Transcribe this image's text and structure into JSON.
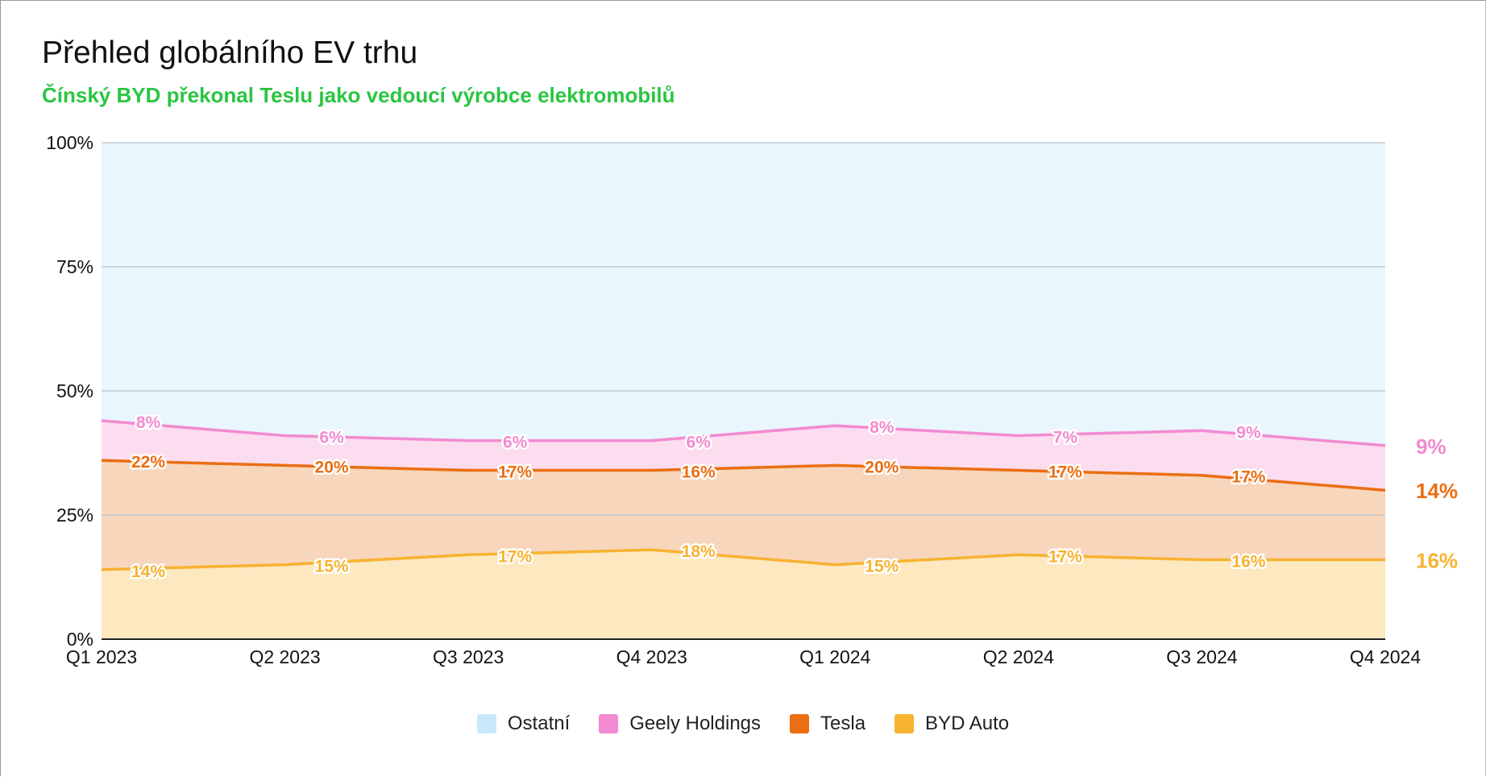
{
  "title": "Přehled globálního EV trhu",
  "subtitle": "Čínský BYD překonal Teslu jako vedoucí výrobce elektromobilů",
  "colors": {
    "subtitle": "#2ac542",
    "others_fill": "#e9f6fd",
    "geely_line": "#f28bd1",
    "geely_fill": "#fcdcef",
    "tesla_line": "#ea6e12",
    "tesla_fill": "#f7d6bb",
    "byd_line": "#f7b230",
    "byd_fill": "#fde8c0"
  },
  "chart_data": {
    "type": "area",
    "stacked": true,
    "categories": [
      "Q1 2023",
      "Q2 2023",
      "Q3 2023",
      "Q4 2023",
      "Q1 2024",
      "Q2 2024",
      "Q3 2024",
      "Q4 2024"
    ],
    "ylim": [
      0,
      100
    ],
    "yticks": [
      "0%",
      "25%",
      "50%",
      "75%",
      "100%"
    ],
    "grid": true,
    "legend_position": "bottom",
    "series": [
      {
        "name": "BYD Auto",
        "key": "byd",
        "values": [
          14,
          15,
          17,
          18,
          15,
          17,
          16,
          16
        ],
        "labels": [
          "14%",
          "15%",
          "17%",
          "18%",
          "15%",
          "17%",
          "16%",
          "16%"
        ]
      },
      {
        "name": "Tesla",
        "key": "tesla",
        "values": [
          22,
          20,
          17,
          16,
          20,
          17,
          17,
          14
        ],
        "labels": [
          "22%",
          "20%",
          "17%",
          "16%",
          "20%",
          "17%",
          "17%",
          "14%"
        ]
      },
      {
        "name": "Geely Holdings",
        "key": "geely",
        "values": [
          8,
          6,
          6,
          6,
          8,
          7,
          9,
          9
        ],
        "labels": [
          "8%",
          "6%",
          "6%",
          "6%",
          "8%",
          "7%",
          "9%",
          "9%"
        ]
      },
      {
        "name": "Ostatní",
        "key": "others",
        "values": [
          56,
          59,
          60,
          60,
          57,
          59,
          58,
          61
        ]
      }
    ],
    "legend": [
      "Ostatní",
      "Geely Holdings",
      "Tesla",
      "BYD Auto"
    ]
  }
}
